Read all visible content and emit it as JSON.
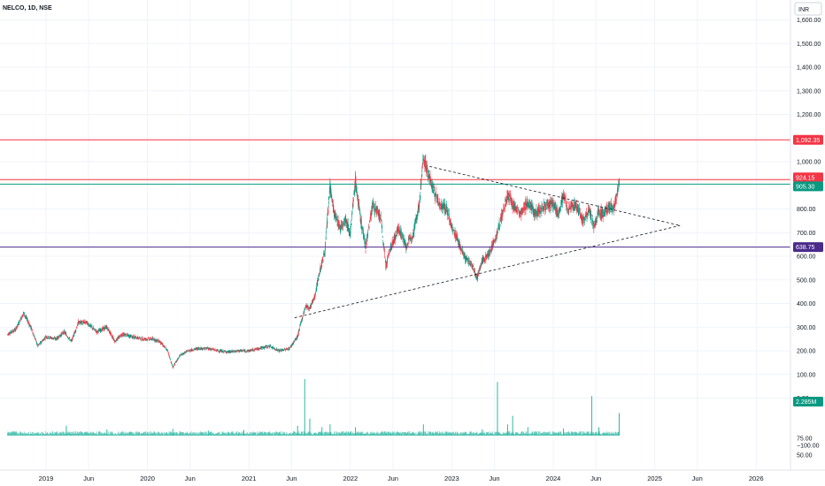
{
  "header": {
    "symbol_line": "NELCO, 1D, NSE",
    "currency_button": "INR"
  },
  "chart_data": {
    "type": "candlestick",
    "title": "NELCO, 1D, NSE",
    "y_scale": "linear",
    "ylim": [
      1650,
      0
    ],
    "price_ticks": [
      "1,600.00",
      "1,500.00",
      "1,400.00",
      "1,300.00",
      "1,200.00",
      "1,000.00",
      "800.00",
      "700.00",
      "600.00",
      "500.00",
      "400.00",
      "300.00",
      "200.00",
      "100.00",
      "0.00"
    ],
    "volume_ticks": [
      "−100.00",
      "75.00",
      "50.00"
    ],
    "x_ticks": [
      {
        "label": "2019",
        "t": 2019.0
      },
      {
        "label": "Jun",
        "t": 2019.42
      },
      {
        "label": "2020",
        "t": 2020.0
      },
      {
        "label": "Jun",
        "t": 2020.42
      },
      {
        "label": "2021",
        "t": 2021.0
      },
      {
        "label": "Jun",
        "t": 2021.42
      },
      {
        "label": "2022",
        "t": 2022.0
      },
      {
        "label": "Jun",
        "t": 2022.42
      },
      {
        "label": "2023",
        "t": 2023.0
      },
      {
        "label": "Jun",
        "t": 2023.42
      },
      {
        "label": "2024",
        "t": 2024.0
      },
      {
        "label": "Jun",
        "t": 2024.42
      },
      {
        "label": "2025",
        "t": 2025.0
      },
      {
        "label": "Jun",
        "t": 2025.42
      },
      {
        "label": "2026",
        "t": 2026.0
      }
    ],
    "price_path": [
      [
        2018.62,
        270
      ],
      [
        2018.7,
        290
      ],
      [
        2018.78,
        360
      ],
      [
        2018.85,
        300
      ],
      [
        2018.92,
        220
      ],
      [
        2019.0,
        260
      ],
      [
        2019.1,
        250
      ],
      [
        2019.18,
        280
      ],
      [
        2019.25,
        240
      ],
      [
        2019.32,
        320
      ],
      [
        2019.4,
        320
      ],
      [
        2019.5,
        280
      ],
      [
        2019.6,
        300
      ],
      [
        2019.68,
        240
      ],
      [
        2019.75,
        270
      ],
      [
        2019.85,
        260
      ],
      [
        2019.95,
        250
      ],
      [
        2020.05,
        250
      ],
      [
        2020.12,
        240
      ],
      [
        2020.2,
        200
      ],
      [
        2020.25,
        130
      ],
      [
        2020.32,
        180
      ],
      [
        2020.4,
        200
      ],
      [
        2020.5,
        210
      ],
      [
        2020.6,
        210
      ],
      [
        2020.7,
        200
      ],
      [
        2020.8,
        195
      ],
      [
        2020.9,
        200
      ],
      [
        2021.0,
        200
      ],
      [
        2021.1,
        210
      ],
      [
        2021.2,
        220
      ],
      [
        2021.3,
        200
      ],
      [
        2021.4,
        210
      ],
      [
        2021.48,
        260
      ],
      [
        2021.52,
        330
      ],
      [
        2021.56,
        390
      ],
      [
        2021.6,
        380
      ],
      [
        2021.65,
        430
      ],
      [
        2021.7,
        540
      ],
      [
        2021.75,
        620
      ],
      [
        2021.8,
        900
      ],
      [
        2021.84,
        780
      ],
      [
        2021.9,
        720
      ],
      [
        2021.95,
        760
      ],
      [
        2022.0,
        700
      ],
      [
        2022.05,
        920
      ],
      [
        2022.1,
        760
      ],
      [
        2022.15,
        640
      ],
      [
        2022.22,
        820
      ],
      [
        2022.3,
        760
      ],
      [
        2022.35,
        560
      ],
      [
        2022.4,
        640
      ],
      [
        2022.48,
        720
      ],
      [
        2022.55,
        640
      ],
      [
        2022.62,
        700
      ],
      [
        2022.68,
        820
      ],
      [
        2022.72,
        1020
      ],
      [
        2022.76,
        960
      ],
      [
        2022.82,
        880
      ],
      [
        2022.88,
        820
      ],
      [
        2022.95,
        800
      ],
      [
        2023.0,
        720
      ],
      [
        2023.05,
        680
      ],
      [
        2023.12,
        600
      ],
      [
        2023.2,
        560
      ],
      [
        2023.25,
        510
      ],
      [
        2023.3,
        580
      ],
      [
        2023.38,
        620
      ],
      [
        2023.45,
        700
      ],
      [
        2023.5,
        780
      ],
      [
        2023.55,
        860
      ],
      [
        2023.6,
        820
      ],
      [
        2023.68,
        780
      ],
      [
        2023.75,
        830
      ],
      [
        2023.82,
        780
      ],
      [
        2023.9,
        810
      ],
      [
        2024.0,
        820
      ],
      [
        2024.05,
        780
      ],
      [
        2024.1,
        860
      ],
      [
        2024.15,
        800
      ],
      [
        2024.22,
        820
      ],
      [
        2024.3,
        750
      ],
      [
        2024.35,
        800
      ],
      [
        2024.4,
        720
      ],
      [
        2024.45,
        790
      ],
      [
        2024.5,
        780
      ],
      [
        2024.55,
        810
      ],
      [
        2024.6,
        800
      ],
      [
        2024.65,
        920
      ]
    ],
    "volume_spikes": [
      {
        "t": 2019.2,
        "vol": 35
      },
      {
        "t": 2019.6,
        "vol": 22
      },
      {
        "t": 2020.25,
        "vol": 24
      },
      {
        "t": 2020.6,
        "vol": 18
      },
      {
        "t": 2020.95,
        "vol": 20
      },
      {
        "t": 2021.48,
        "vol": 35
      },
      {
        "t": 2021.55,
        "vol": 200
      },
      {
        "t": 2021.6,
        "vol": 60
      },
      {
        "t": 2021.72,
        "vol": 30
      },
      {
        "t": 2021.8,
        "vol": 40
      },
      {
        "t": 2022.05,
        "vol": 30
      },
      {
        "t": 2022.72,
        "vol": 40
      },
      {
        "t": 2023.3,
        "vol": 22
      },
      {
        "t": 2023.45,
        "vol": 190
      },
      {
        "t": 2023.55,
        "vol": 40
      },
      {
        "t": 2023.6,
        "vol": 70
      },
      {
        "t": 2023.75,
        "vol": 30
      },
      {
        "t": 2024.1,
        "vol": 25
      },
      {
        "t": 2024.38,
        "vol": 140
      },
      {
        "t": 2024.45,
        "vol": 30
      },
      {
        "t": 2024.65,
        "vol": 80
      }
    ],
    "horizontal_levels": [
      {
        "price": 1092.35,
        "color": "#f23645",
        "label": "1,092.35"
      },
      {
        "price": 924.15,
        "color": "#f23645",
        "label": "924.15"
      },
      {
        "price": 905.3,
        "color": "#089981",
        "label": "905.30"
      },
      {
        "price": 638.75,
        "color": "#4a2a8a",
        "label": "638.75"
      }
    ],
    "volume_badge": {
      "label": "2.285M",
      "color": "#089981"
    },
    "trendlines": [
      {
        "from": {
          "t": 2022.78,
          "price": 980
        },
        "to": {
          "t": 2025.25,
          "price": 730
        }
      },
      {
        "from": {
          "t": 2021.45,
          "price": 340
        },
        "to": {
          "t": 2025.25,
          "price": 730
        }
      }
    ],
    "colors": {
      "up": "#089981",
      "down": "#f23645",
      "volume": "#2fb8a4",
      "grid": "#f0f3fa",
      "trendline": "#131722"
    }
  }
}
